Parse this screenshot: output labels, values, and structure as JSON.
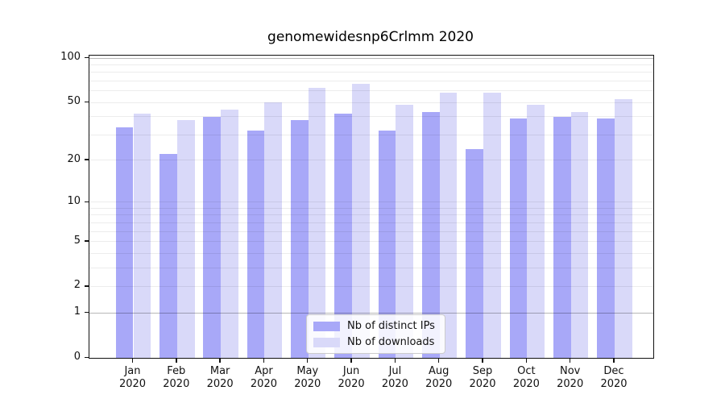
{
  "figure": {
    "background": "#ffffff"
  },
  "chart_data": {
    "type": "bar",
    "title": "genomewidesnp6Crlmm 2020",
    "x_months": [
      "Jan",
      "Feb",
      "Mar",
      "Apr",
      "May",
      "Jun",
      "Jul",
      "Aug",
      "Sep",
      "Oct",
      "Nov",
      "Dec"
    ],
    "x_year": "2020",
    "series": [
      {
        "name": "Nb of distinct IPs",
        "color": "#a8a8f8",
        "values": [
          34,
          22,
          40,
          32,
          38,
          42,
          32,
          43,
          24,
          39,
          40,
          39
        ]
      },
      {
        "name": "Nb of downloads",
        "color": "#d9d9f9",
        "values": [
          42,
          38,
          45,
          50,
          63,
          67,
          48,
          58,
          58,
          48,
          43,
          53
        ]
      }
    ],
    "y_scale": "log10(1+x)",
    "y_ticks": [
      0,
      1,
      2,
      5,
      10,
      20,
      50,
      100
    ],
    "ylim": [
      0,
      104
    ],
    "gridlines": {
      "minor": [
        2,
        3,
        4,
        5,
        6,
        7,
        8,
        9,
        10,
        20,
        30,
        40,
        50,
        60,
        70,
        80,
        90
      ],
      "major": [
        1,
        100
      ]
    },
    "grid_on": true,
    "legend_position": "lower center",
    "xlabel": "",
    "ylabel": ""
  }
}
